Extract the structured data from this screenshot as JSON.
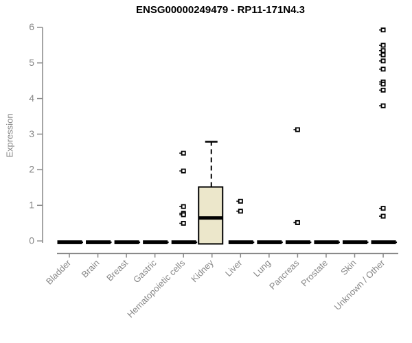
{
  "title": "ENSG00000249479 - RP11-171N4.3",
  "y_axis": {
    "label": "Expression"
  },
  "colors": {
    "axis": "#878787",
    "tick_label": "#878787",
    "box_fill": "#ECE7CB",
    "box_stroke": "#000000",
    "title_text": "#000000",
    "background": "#FFFFFF"
  },
  "chart_data": {
    "type": "box",
    "title": "ENSG00000249479 - RP11-171N4.3",
    "xlabel": "",
    "ylabel": "Expression",
    "ylim": [
      0,
      6
    ],
    "yticks": [
      0,
      1,
      2,
      3,
      4,
      5,
      6
    ],
    "grid": false,
    "legend": "none",
    "categories": [
      "Bladder",
      "Brain",
      "Breast",
      "Gastric",
      "Hematopoietic cells",
      "Kidney",
      "Liver",
      "Lung",
      "Pancreas",
      "Prostate",
      "Skin",
      "Unknown / Other"
    ],
    "boxes": [
      {
        "category": "Bladder",
        "low": 0,
        "q1": 0,
        "median": 0,
        "q3": 0,
        "high": 0,
        "outliers": []
      },
      {
        "category": "Brain",
        "low": 0,
        "q1": 0,
        "median": 0,
        "q3": 0,
        "high": 0,
        "outliers": []
      },
      {
        "category": "Breast",
        "low": 0,
        "q1": 0,
        "median": 0,
        "q3": 0,
        "high": 0,
        "outliers": []
      },
      {
        "category": "Gastric",
        "low": 0,
        "q1": 0,
        "median": 0,
        "q3": 0,
        "high": 0,
        "outliers": []
      },
      {
        "category": "Hematopoietic cells",
        "low": 0,
        "q1": 0,
        "median": 0,
        "q3": 0,
        "high": 0,
        "outliers": [
          2.5,
          2.0,
          1.0,
          0.81,
          0.77,
          0.53
        ]
      },
      {
        "category": "Kidney",
        "low": 0,
        "q1": 0,
        "median": 0.68,
        "q3": 1.55,
        "high": 2.82,
        "outliers": []
      },
      {
        "category": "Liver",
        "low": 0,
        "q1": 0,
        "median": 0,
        "q3": 0,
        "high": 0,
        "outliers": [
          1.15,
          0.87
        ]
      },
      {
        "category": "Lung",
        "low": 0,
        "q1": 0,
        "median": 0,
        "q3": 0,
        "high": 0,
        "outliers": []
      },
      {
        "category": "Pancreas",
        "low": 0,
        "q1": 0,
        "median": 0,
        "q3": 0,
        "high": 0,
        "outliers": [
          3.16,
          0.55
        ]
      },
      {
        "category": "Prostate",
        "low": 0,
        "q1": 0,
        "median": 0,
        "q3": 0,
        "high": 0,
        "outliers": []
      },
      {
        "category": "Skin",
        "low": 0,
        "q1": 0,
        "median": 0,
        "q3": 0,
        "high": 0,
        "outliers": []
      },
      {
        "category": "Unknown / Other",
        "low": 0,
        "q1": 0,
        "median": 0,
        "q3": 0,
        "high": 0,
        "outliers": [
          5.96,
          5.53,
          5.38,
          5.26,
          5.09,
          4.86,
          4.5,
          4.44,
          4.27,
          3.83,
          0.95,
          0.73
        ]
      }
    ]
  }
}
